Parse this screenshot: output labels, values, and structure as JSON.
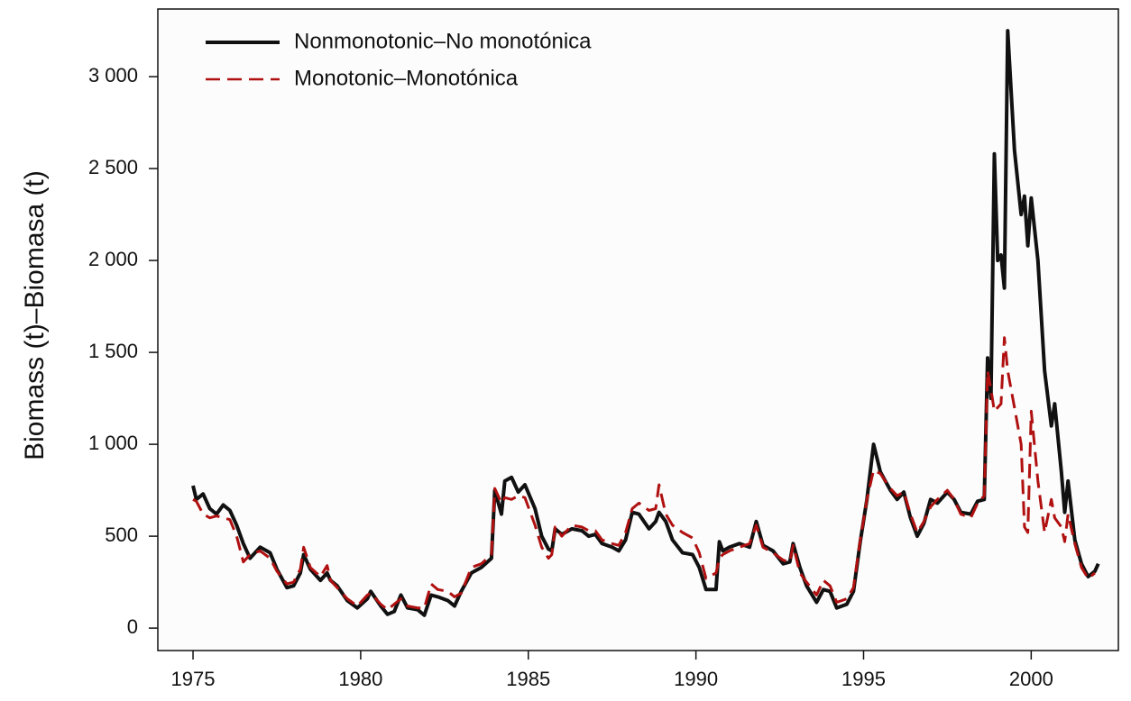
{
  "chart_data": {
    "type": "line",
    "y_label": "Biomass (t)–Biomasa (t)",
    "x": [
      1975.0,
      1975.1,
      1975.3,
      1975.5,
      1975.7,
      1975.9,
      1976.1,
      1976.3,
      1976.5,
      1976.7,
      1977.0,
      1977.3,
      1977.5,
      1977.8,
      1978.0,
      1978.2,
      1978.3,
      1978.5,
      1978.8,
      1979.0,
      1979.1,
      1979.3,
      1979.6,
      1979.9,
      1980.2,
      1980.3,
      1980.6,
      1980.8,
      1981.0,
      1981.2,
      1981.4,
      1981.7,
      1981.9,
      1982.1,
      1982.3,
      1982.6,
      1982.8,
      1983.0,
      1983.3,
      1983.6,
      1983.9,
      1984.0,
      1984.2,
      1984.3,
      1984.5,
      1984.7,
      1984.9,
      1985.2,
      1985.4,
      1985.6,
      1985.7,
      1985.8,
      1986.0,
      1986.3,
      1986.6,
      1986.8,
      1987.0,
      1987.2,
      1987.5,
      1987.7,
      1987.9,
      1988.1,
      1988.3,
      1988.6,
      1988.8,
      1988.9,
      1989.1,
      1989.3,
      1989.6,
      1989.9,
      1990.1,
      1990.3,
      1990.6,
      1990.7,
      1990.8,
      1991.0,
      1991.3,
      1991.6,
      1991.8,
      1992.0,
      1992.3,
      1992.6,
      1992.8,
      1992.9,
      1993.1,
      1993.3,
      1993.6,
      1993.8,
      1994.0,
      1994.2,
      1994.5,
      1994.7,
      1994.9,
      1995.1,
      1995.3,
      1995.5,
      1995.8,
      1996.0,
      1996.2,
      1996.4,
      1996.6,
      1996.8,
      1997.0,
      1997.2,
      1997.5,
      1997.7,
      1997.9,
      1998.2,
      1998.4,
      1998.6,
      1998.7,
      1998.8,
      1998.9,
      1999.0,
      1999.1,
      1999.2,
      1999.3,
      1999.5,
      1999.7,
      1999.8,
      1999.9,
      2000.0,
      2000.2,
      2000.4,
      2000.6,
      2000.7,
      2000.9,
      2001.0,
      2001.1,
      2001.3,
      2001.5,
      2001.7,
      2001.9,
      2002.0
    ],
    "series": [
      {
        "name": "Nonmonotonic–No monotónica",
        "color": "#111111",
        "dash": false,
        "values": [
          775,
          700,
          730,
          650,
          620,
          670,
          640,
          560,
          460,
          380,
          440,
          410,
          320,
          220,
          230,
          300,
          400,
          320,
          260,
          300,
          260,
          230,
          150,
          110,
          160,
          200,
          120,
          75,
          90,
          180,
          110,
          100,
          70,
          180,
          170,
          150,
          120,
          200,
          300,
          330,
          380,
          750,
          620,
          800,
          820,
          740,
          780,
          650,
          500,
          430,
          420,
          540,
          510,
          540,
          530,
          500,
          510,
          460,
          440,
          420,
          480,
          630,
          620,
          540,
          580,
          630,
          580,
          480,
          410,
          400,
          330,
          210,
          210,
          470,
          420,
          440,
          460,
          440,
          580,
          450,
          420,
          350,
          360,
          460,
          330,
          230,
          140,
          210,
          200,
          110,
          130,
          200,
          470,
          700,
          1000,
          850,
          750,
          700,
          740,
          600,
          500,
          570,
          700,
          680,
          740,
          700,
          630,
          620,
          690,
          700,
          1470,
          1250,
          2580,
          2000,
          2030,
          1850,
          3250,
          2600,
          2250,
          2350,
          2080,
          2340,
          2000,
          1400,
          1100,
          1220,
          850,
          630,
          800,
          480,
          350,
          280,
          310,
          350
        ]
      },
      {
        "name": "Monotonic–Monotónica",
        "color": "#b01010",
        "dash": true,
        "values": [
          700,
          690,
          620,
          600,
          610,
          600,
          590,
          500,
          360,
          400,
          420,
          380,
          310,
          240,
          250,
          320,
          440,
          330,
          280,
          340,
          260,
          220,
          160,
          120,
          180,
          190,
          130,
          100,
          130,
          160,
          120,
          110,
          110,
          240,
          210,
          200,
          170,
          190,
          330,
          350,
          400,
          760,
          680,
          710,
          700,
          720,
          710,
          560,
          440,
          380,
          400,
          550,
          500,
          560,
          550,
          530,
          530,
          480,
          460,
          450,
          520,
          650,
          680,
          640,
          650,
          780,
          620,
          560,
          520,
          490,
          410,
          270,
          300,
          380,
          400,
          420,
          440,
          460,
          560,
          440,
          410,
          370,
          360,
          450,
          300,
          250,
          180,
          260,
          230,
          140,
          160,
          220,
          480,
          700,
          860,
          840,
          760,
          720,
          740,
          620,
          520,
          580,
          660,
          700,
          750,
          700,
          620,
          600,
          680,
          720,
          1400,
          1300,
          1180,
          1200,
          1220,
          1580,
          1400,
          1200,
          1000,
          550,
          520,
          1180,
          800,
          520,
          700,
          600,
          550,
          470,
          620,
          460,
          330,
          270,
          300,
          null
        ]
      }
    ],
    "xlim": [
      1973.95,
      2002.6
    ],
    "ylim": [
      -122,
      3368
    ],
    "xticks": [
      1975,
      1980,
      1985,
      1990,
      1995,
      2000
    ],
    "yticks": [
      0,
      500,
      {
        "value": 1000,
        "label": "1 000"
      },
      {
        "value": 1500,
        "label": "1 500"
      },
      {
        "value": 2000,
        "label": "2 000"
      },
      {
        "value": 2500,
        "label": "2 500"
      },
      {
        "value": 3000,
        "label": "3 000"
      }
    ],
    "legend": "upper left",
    "grid": false
  }
}
